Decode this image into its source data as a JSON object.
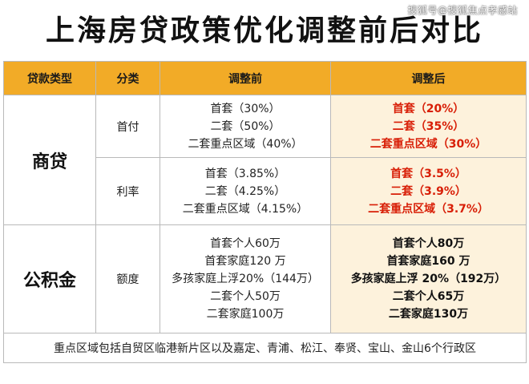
{
  "watermark": "搜狐号@搜狐焦点孝感站",
  "title": "上海房贷政策优化调整前后对比",
  "headers": {
    "loan_type": "贷款类型",
    "category": "分类",
    "before": "调整前",
    "after": "调整后"
  },
  "commercial": {
    "label": "商贷",
    "down_payment": {
      "label": "首付",
      "before": [
        "首套（30%）",
        "二套（50%）",
        "二套重点区域（40%）"
      ],
      "after": [
        "首套（20%）",
        "二套（35%）",
        "二套重点区域（30%）"
      ]
    },
    "interest_rate": {
      "label": "利率",
      "before": [
        "首套（3.85%）",
        "二套（4.25%）",
        "二套重点区域（4.15%）"
      ],
      "after": [
        "首套（3.5%）",
        "二套（3.9%）",
        "二套重点区域（3.7%）"
      ]
    }
  },
  "provident": {
    "label": "公积金",
    "limit": {
      "label": "额度",
      "before": [
        "首套个人60万",
        "首套家庭120 万",
        "多孩家庭上浮20%（144万）",
        "二套个人50万",
        "二套家庭100万"
      ],
      "after": [
        "首套个人80万",
        "首套家庭160 万",
        "多孩家庭上浮 20%（192万）",
        "二套个人65万",
        "二套家庭130万"
      ]
    }
  },
  "footer": "重点区域包括自贸区临港新片区以及嘉定、青浦、松江、奉贤、宝山、金山6个行政区",
  "colors": {
    "header_bg": "#f2ab27",
    "after_bg": "#fdf2dc",
    "after_red": "#d81e06"
  }
}
